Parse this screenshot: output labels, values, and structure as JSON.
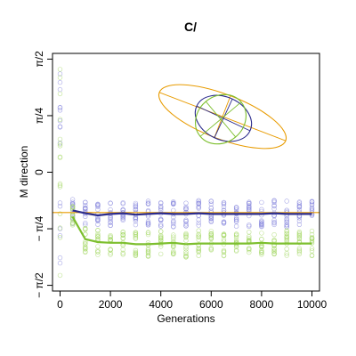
{
  "chart_data": {
    "type": "scatter",
    "title": "C/",
    "xlabel": "Generations",
    "ylabel": "M direction",
    "xlim": [
      -300,
      10300
    ],
    "ylim": [
      -1.65,
      1.65
    ],
    "x_ticks": [
      {
        "value": 0,
        "label": "0"
      },
      {
        "value": 2000,
        "label": "2000"
      },
      {
        "value": 4000,
        "label": "4000"
      },
      {
        "value": 6000,
        "label": "6000"
      },
      {
        "value": 8000,
        "label": "8000"
      },
      {
        "value": 10000,
        "label": "10000"
      }
    ],
    "y_ticks": [
      {
        "value": 1.5708,
        "label": "π/2"
      },
      {
        "value": 0.7854,
        "label": "π/4"
      },
      {
        "value": 0,
        "label": "0"
      },
      {
        "value": -0.7854,
        "label": "− π/4"
      },
      {
        "value": -1.5708,
        "label": "− π/2"
      }
    ],
    "reference_line": {
      "value": -0.56,
      "color": "#e89b00"
    },
    "series": [
      {
        "color": "#2b2b8c",
        "point_color": "#8888dd",
        "x": [
          500,
          1000,
          1500,
          2000,
          2500,
          3000,
          3500,
          4000,
          4500,
          5000,
          5500,
          6000,
          6500,
          7000,
          7500,
          8000,
          8500,
          9000,
          9500,
          10000
        ],
        "y": [
          -0.53,
          -0.57,
          -0.6,
          -0.58,
          -0.57,
          -0.59,
          -0.58,
          -0.57,
          -0.58,
          -0.58,
          -0.57,
          -0.58,
          -0.58,
          -0.58,
          -0.58,
          -0.58,
          -0.57,
          -0.58,
          -0.58,
          -0.58
        ]
      },
      {
        "color": "#7dbf2e",
        "point_color": "#a6d96a",
        "x": [
          500,
          1000,
          1500,
          2000,
          2500,
          3000,
          3500,
          4000,
          4500,
          5000,
          5500,
          6000,
          6500,
          7000,
          7500,
          8000,
          8500,
          9000,
          9500,
          10000
        ],
        "y": [
          -0.62,
          -0.93,
          -0.97,
          -0.98,
          -0.98,
          -1.0,
          -1.0,
          -0.99,
          -0.98,
          -1.0,
          -0.99,
          -0.99,
          -0.99,
          -0.99,
          -0.99,
          -0.98,
          -0.99,
          -0.99,
          -0.99,
          -0.99
        ]
      }
    ],
    "inset_ellipses": [
      {
        "color": "#e89b00"
      },
      {
        "color": "#2b2b8c"
      },
      {
        "color": "#7dbf2e"
      }
    ]
  }
}
